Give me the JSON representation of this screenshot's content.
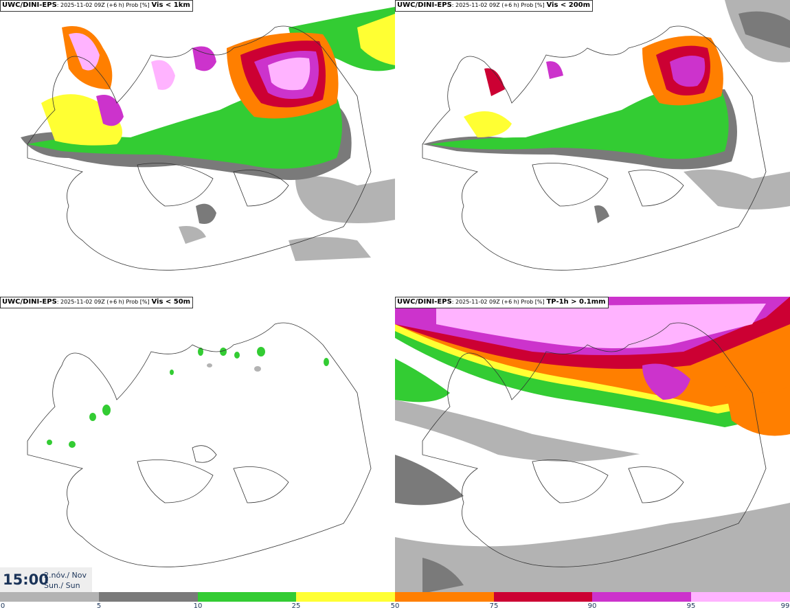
{
  "panels": [
    {
      "model": "UWC/DINI-EPS",
      "info": ": 2025-11-02 09Z (+6 h) Prob [%]",
      "field": "Vis < 1km"
    },
    {
      "model": "UWC/DINI-EPS",
      "info": ": 2025-11-02 09Z (+6 h) Prob [%]",
      "field": "Vis < 200m"
    },
    {
      "model": "UWC/DINI-EPS",
      "info": ": 2025-11-02 09Z (+6 h) Prob [%]",
      "field": "Vis < 50m"
    },
    {
      "model": "UWC/DINI-EPS",
      "info": ": 2025-11-02 09Z (+6 h) Prob [%]",
      "field": "TP-1h > 0.1mm"
    }
  ],
  "time": {
    "clock": "15:00",
    "date_line1": "2.nóv./ Nov",
    "date_line2": "Sun./ Sun"
  },
  "legend": {
    "ticks": [
      "0",
      "5",
      "10",
      "25",
      "50",
      "75",
      "90",
      "95",
      "99"
    ],
    "colors": [
      "#ffffff",
      "#b3b3b3",
      "#7a7a7a",
      "#33cc33",
      "#ffff33",
      "#ff7f00",
      "#cc0033",
      "#cc33cc",
      "#ffb3ff"
    ]
  }
}
